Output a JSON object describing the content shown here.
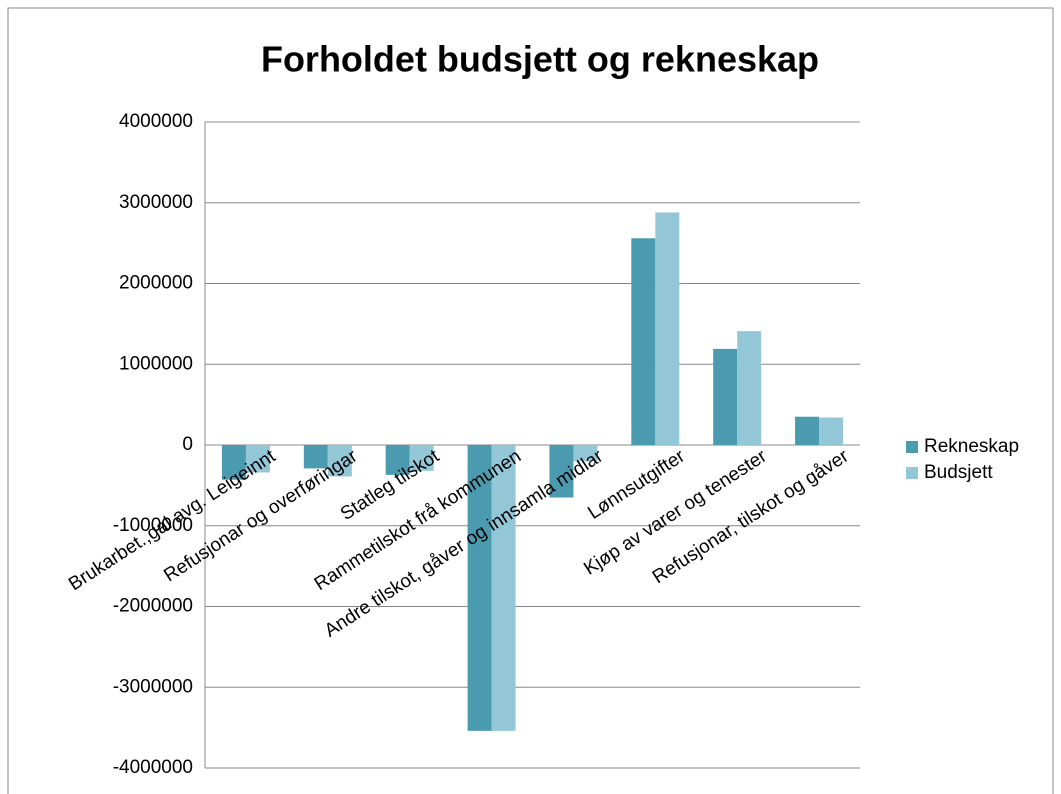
{
  "chart_data": {
    "type": "bar",
    "title": "Forholdet budsjett og rekneskap",
    "categories": [
      "Brukarbet.,gal avg. Leigeinnt",
      "Refusjonar og overføringar",
      "Statleg tilskot",
      "Rammetilskot frå kommunen",
      "Andre tilskot, gåver og innsamla midlar",
      "Lønnsutgifter",
      "Kjøp av varer og tenester",
      "Refusjonar, tilskot og gåver"
    ],
    "series": [
      {
        "name": "Rekneskap",
        "color": "#4a9bb0",
        "values": [
          -430000,
          -290000,
          -370000,
          -3540000,
          -650000,
          2560000,
          1190000,
          350000
        ]
      },
      {
        "name": "Budsjett",
        "color": "#93c6d7",
        "values": [
          -340000,
          -390000,
          -320000,
          -3540000,
          -200000,
          2880000,
          1410000,
          340000
        ]
      }
    ],
    "ylim": [
      -4000000,
      4000000
    ],
    "yticks": [
      -4000000,
      -3000000,
      -2000000,
      -1000000,
      0,
      1000000,
      2000000,
      3000000,
      4000000
    ],
    "grid": true,
    "legend": "right"
  }
}
